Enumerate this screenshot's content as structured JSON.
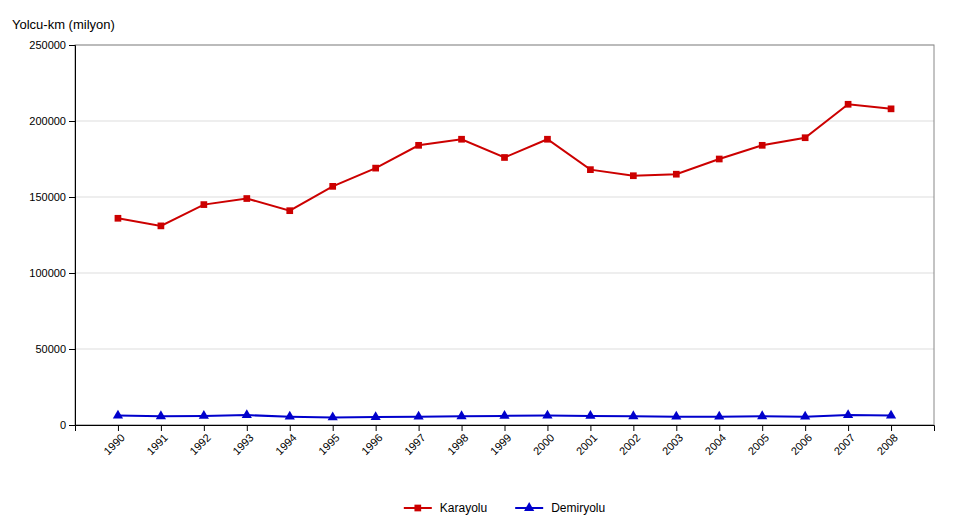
{
  "chart_data": {
    "type": "line",
    "ylabel": "Yolcu-km (milyon)",
    "x": [
      1990,
      1991,
      1992,
      1993,
      1994,
      1995,
      1996,
      1997,
      1998,
      1999,
      2000,
      2001,
      2002,
      2003,
      2004,
      2005,
      2006,
      2007,
      2008
    ],
    "xlim": [
      1989,
      2009
    ],
    "xticks": [
      1990,
      1991,
      1992,
      1993,
      1994,
      1995,
      1996,
      1997,
      1998,
      1999,
      2000,
      2001,
      2002,
      2003,
      2004,
      2005,
      2006,
      2007,
      2008
    ],
    "ylim": [
      0,
      250000
    ],
    "yticks": [
      0,
      50000,
      100000,
      150000,
      200000,
      250000
    ],
    "grid": true,
    "legend": "bottom",
    "series": [
      {
        "name": "Karayolu",
        "color": "#cc0000",
        "marker": "square",
        "values": [
          136000,
          131000,
          145000,
          149000,
          141000,
          157000,
          169000,
          184000,
          188000,
          176000,
          188000,
          168000,
          164000,
          165000,
          175000,
          184000,
          189000,
          211000,
          208000
        ]
      },
      {
        "name": "Demiryolu",
        "color": "#0000cc",
        "marker": "triangle",
        "values": [
          6200,
          5800,
          6000,
          6500,
          5500,
          5000,
          5200,
          5500,
          5800,
          6000,
          6200,
          6000,
          5800,
          5500,
          5500,
          5800,
          5500,
          6500,
          6200
        ]
      }
    ]
  }
}
